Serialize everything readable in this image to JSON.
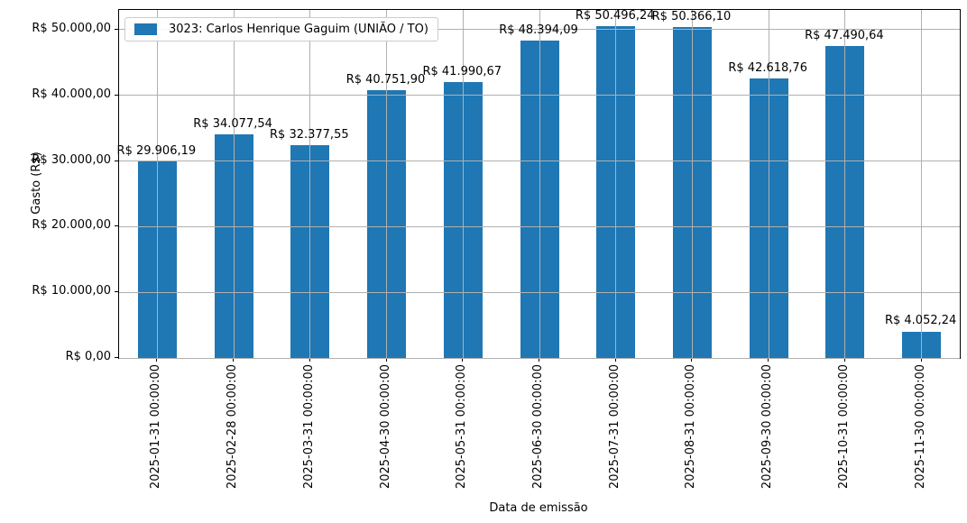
{
  "figure": {
    "background": "#ffffff"
  },
  "chart_data": {
    "type": "bar",
    "title": "",
    "legend": {
      "label": "3023: Carlos Henrique Gaguim (UNIÃO / TO)",
      "position": "upper left"
    },
    "xlabel": "Data de emissão",
    "ylabel": "Gasto (R$)",
    "categories": [
      "2025-01-31 00:00:00",
      "2025-02-28 00:00:00",
      "2025-03-31 00:00:00",
      "2025-04-30 00:00:00",
      "2025-05-31 00:00:00",
      "2025-06-30 00:00:00",
      "2025-07-31 00:00:00",
      "2025-08-31 00:00:00",
      "2025-09-30 00:00:00",
      "2025-10-31 00:00:00",
      "2025-11-30 00:00:00"
    ],
    "values": [
      29906.19,
      34077.54,
      32377.55,
      40751.9,
      41990.67,
      48394.09,
      50496.24,
      50366.1,
      42618.76,
      47490.64,
      4052.24
    ],
    "value_labels": [
      "R$ 29.906,19",
      "R$ 34.077,54",
      "R$ 32.377,55",
      "R$ 40.751,90",
      "R$ 41.990,67",
      "R$ 48.394,09",
      "R$ 50.496,24",
      "R$ 50.366,10",
      "R$ 42.618,76",
      "R$ 47.490,64",
      "R$ 4.052,24"
    ],
    "yticks": {
      "values": [
        0,
        10000,
        20000,
        30000,
        40000,
        50000
      ],
      "labels": [
        "R$ 0,00",
        "R$ 10.000,00",
        "R$ 20.000,00",
        "R$ 30.000,00",
        "R$ 40.000,00",
        "R$ 50.000,00"
      ]
    },
    "ylim": [
      0,
      53021
    ],
    "grid": true,
    "bar_color": "#1f77b4",
    "grid_color": "#b0b0b0",
    "spine_color": "#000000",
    "legend_border_color": "#cccccc",
    "text_color": "#000000"
  }
}
